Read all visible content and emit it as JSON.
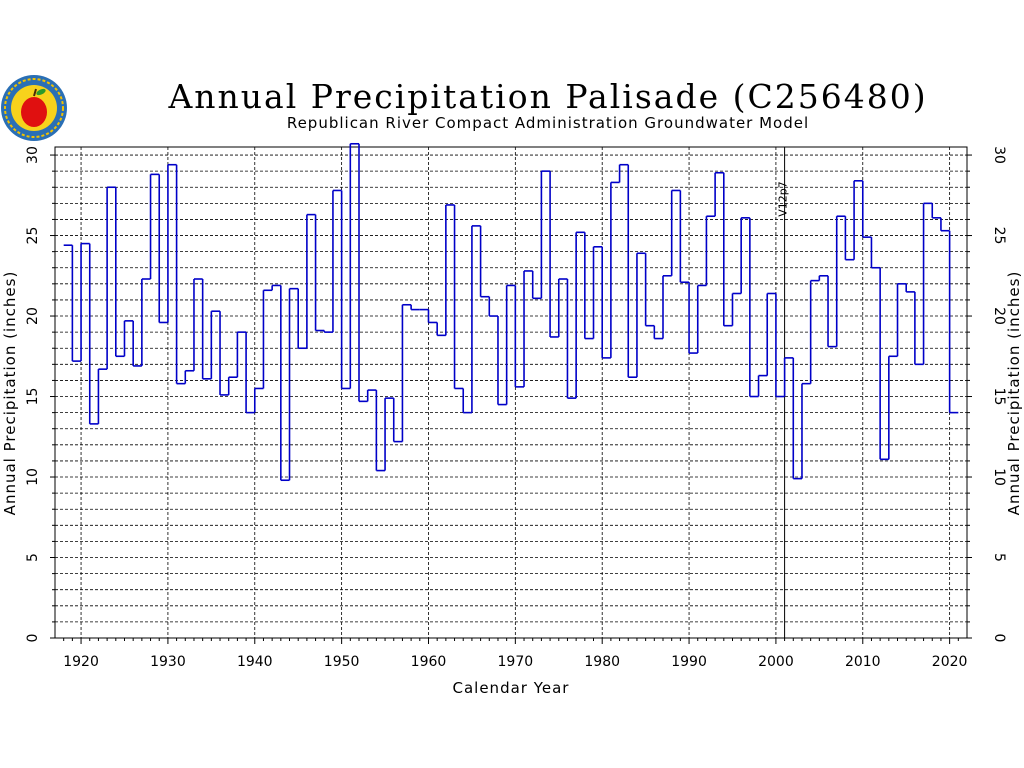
{
  "chart_data": {
    "type": "line",
    "title": "Annual Precipitation Palisade (C256480)",
    "subtitle": "Republican River Compact Administration Groundwater Model",
    "xlabel": "Calendar Year",
    "ylabel": "Annual Precipitation (inches)",
    "xlim": [
      1917,
      2022
    ],
    "ylim": [
      0,
      30.5
    ],
    "xticks": [
      1920,
      1930,
      1940,
      1950,
      1960,
      1970,
      1980,
      1990,
      2000,
      2010,
      2020
    ],
    "yticks": [
      0,
      5,
      10,
      15,
      20,
      25,
      30
    ],
    "grid": true,
    "annotation": {
      "x": 2001,
      "label": "V12p7"
    },
    "series_color": "#0000c8",
    "series": [
      {
        "x": [
          1918,
          1919,
          1920,
          1921,
          1922,
          1923,
          1924,
          1925,
          1926,
          1927,
          1928,
          1929,
          1930,
          1931,
          1932,
          1933,
          1934,
          1935,
          1936,
          1937,
          1938,
          1939,
          1940,
          1941,
          1942,
          1943,
          1944,
          1945,
          1946,
          1947,
          1948,
          1949,
          1950,
          1951,
          1952,
          1953,
          1954,
          1955,
          1956,
          1957,
          1958,
          1959,
          1960,
          1961,
          1962,
          1963,
          1964,
          1965,
          1966,
          1967,
          1968,
          1969,
          1970,
          1971,
          1972,
          1973,
          1974,
          1975,
          1976,
          1977,
          1978,
          1979,
          1980,
          1981,
          1982,
          1983,
          1984,
          1985,
          1986,
          1987,
          1988,
          1989,
          1990,
          1991,
          1992,
          1993,
          1994,
          1995,
          1996,
          1997,
          1998,
          1999,
          2000,
          2001,
          2002,
          2003,
          2004,
          2005,
          2006,
          2007,
          2008,
          2009,
          2010,
          2011,
          2012,
          2013,
          2014,
          2015,
          2016,
          2017,
          2018,
          2019,
          2020
        ],
        "values": [
          24.4,
          17.2,
          24.5,
          13.3,
          16.7,
          28.0,
          17.5,
          19.7,
          16.9,
          22.3,
          28.8,
          19.6,
          29.4,
          15.8,
          16.6,
          22.3,
          16.1,
          20.3,
          15.1,
          16.2,
          19.0,
          14.0,
          15.5,
          21.6,
          21.9,
          9.8,
          21.7,
          18.0,
          26.3,
          19.1,
          19.0,
          27.8,
          15.5,
          30.7,
          14.7,
          15.4,
          10.4,
          14.9,
          12.2,
          20.7,
          20.4,
          20.4,
          19.6,
          18.8,
          26.9,
          15.5,
          14.0,
          25.6,
          21.2,
          20.0,
          14.5,
          21.9,
          15.6,
          22.8,
          21.1,
          29.0,
          18.7,
          22.3,
          14.9,
          25.2,
          18.6,
          24.3,
          17.4,
          28.3,
          29.4,
          16.2,
          23.9,
          19.4,
          18.6,
          22.5,
          27.8,
          22.1,
          17.7,
          21.9,
          26.2,
          28.9,
          19.4,
          21.4,
          26.1,
          15.0,
          16.3,
          21.4,
          15.0,
          17.4,
          9.9,
          15.8,
          22.2,
          22.5,
          18.1,
          26.2,
          23.5,
          28.4,
          24.9,
          23.0,
          11.1,
          17.5,
          22.0,
          21.5,
          17.0,
          27.0,
          26.1,
          25.3,
          14.0
        ]
      }
    ]
  }
}
